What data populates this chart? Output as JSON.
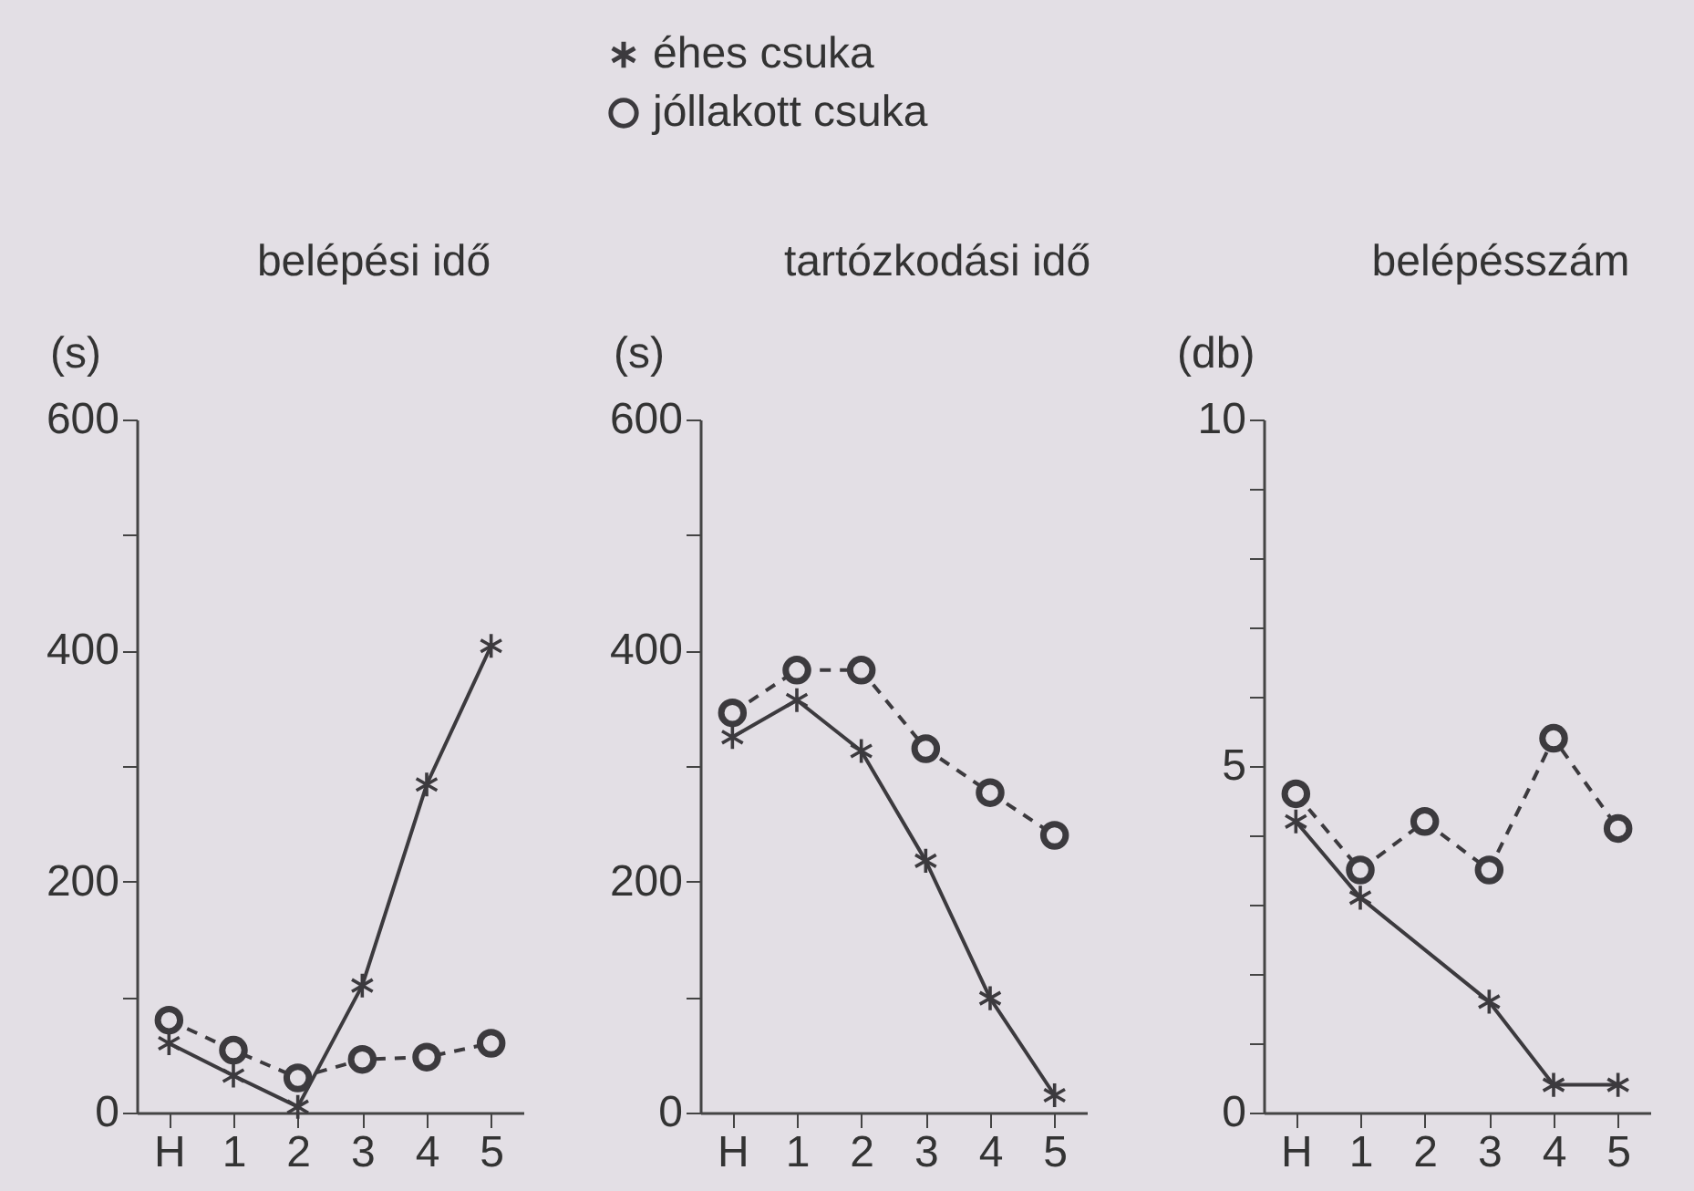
{
  "chart_data": [
    {
      "type": "line",
      "title": "belépési idő",
      "ylabel": "(s)",
      "categories": [
        "H",
        "1",
        "2",
        "3",
        "4",
        "5"
      ],
      "ylim": [
        0,
        600
      ],
      "yticks": [
        0,
        {
          "value": 100,
          "label": null
        },
        200,
        {
          "value": 300,
          "label": null
        },
        400,
        {
          "value": 500,
          "label": null
        },
        600
      ],
      "grid": false,
      "legend": "top",
      "series": [
        {
          "name": "éhes csuka",
          "color": "#3c3a3e",
          "marker": "cross",
          "line_style": "solid",
          "values": [
            60,
            32,
            5,
            110,
            284,
            404
          ]
        },
        {
          "name": "jóllakott csuka",
          "color": "#3c3a3e",
          "marker": "circle",
          "line_style": "dashed",
          "values": [
            80,
            54,
            30,
            46,
            48,
            60
          ]
        }
      ]
    },
    {
      "type": "line",
      "title": "tartózkodási idő",
      "ylabel": "(s)",
      "categories": [
        "H",
        "1",
        "2",
        "3",
        "4",
        "5"
      ],
      "ylim": [
        0,
        600
      ],
      "yticks": [
        0,
        {
          "value": 100,
          "label": null
        },
        200,
        {
          "value": 300,
          "label": null
        },
        400,
        {
          "value": 500,
          "label": null
        },
        600
      ],
      "grid": false,
      "series": [
        {
          "color": "#3c3a3e",
          "marker": "cross",
          "line_style": "solid",
          "values": [
            325,
            357,
            313,
            218,
            99,
            15
          ]
        },
        {
          "color": "#3c3a3e",
          "marker": "circle",
          "line_style": "dashed",
          "values": [
            346,
            383,
            383,
            315,
            277,
            240
          ]
        }
      ]
    },
    {
      "type": "line",
      "title": "belépésszám",
      "ylabel": "(db)",
      "categories": [
        "H",
        "1",
        "2",
        "3",
        "4",
        "5"
      ],
      "ylim": [
        0,
        10
      ],
      "yticks": [
        0,
        {
          "value": 1,
          "label": null
        },
        {
          "value": 2,
          "label": null
        },
        {
          "value": 3,
          "label": null
        },
        {
          "value": 4,
          "label": null
        },
        5,
        {
          "value": 6,
          "label": null
        },
        {
          "value": 7,
          "label": null
        },
        {
          "value": 8,
          "label": null
        },
        {
          "value": 9,
          "label": null
        },
        10
      ],
      "grid": false,
      "series": [
        {
          "color": "#3c3a3e",
          "marker": "cross",
          "line_style": "solid",
          "values": [
            4.2,
            3.1,
            null,
            1.6,
            0.4,
            0.4
          ]
        },
        {
          "color": "#3c3a3e",
          "marker": "circle",
          "line_style": "dashed",
          "values": [
            4.6,
            3.5,
            4.2,
            3.5,
            5.4,
            4.1
          ]
        }
      ]
    }
  ]
}
